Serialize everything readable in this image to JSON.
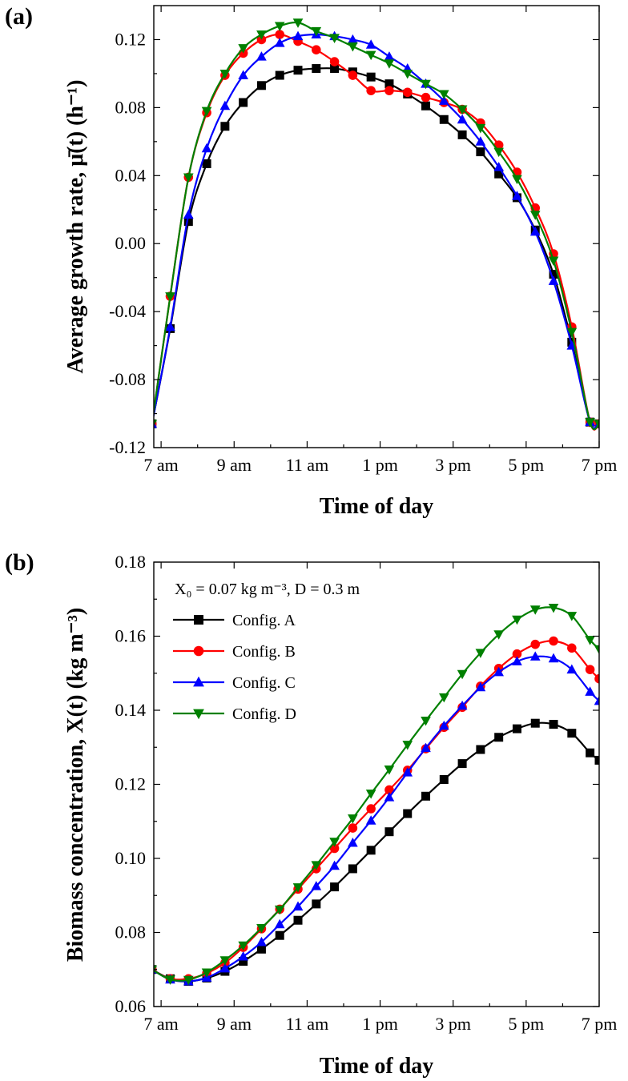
{
  "chart_data": [
    {
      "type": "line",
      "panel_label": "(a)",
      "xlabel": "Time of day",
      "ylabel": "Average growth rate, μ̄(t) (h⁻¹)",
      "xlim": [
        6.8,
        19.0
      ],
      "ylim": [
        -0.12,
        0.14
      ],
      "xticks": [
        7,
        9,
        11,
        13,
        15,
        17,
        19
      ],
      "xtick_labels": [
        "7 am",
        "9 am",
        "11 am",
        "1 pm",
        "3 pm",
        "5 pm",
        "7 pm"
      ],
      "yticks": [
        -0.12,
        -0.08,
        -0.04,
        0.0,
        0.04,
        0.08,
        0.12
      ],
      "ytick_labels": [
        "-0.12",
        "-0.08",
        "-0.04",
        "0.00",
        "0.04",
        "0.08",
        "0.12"
      ],
      "x": [
        6.75,
        7.25,
        7.75,
        8.25,
        8.75,
        9.25,
        9.75,
        10.25,
        10.75,
        11.25,
        11.75,
        12.25,
        12.75,
        13.25,
        13.75,
        14.25,
        14.75,
        15.25,
        15.75,
        16.25,
        16.75,
        17.25,
        17.75,
        18.25,
        18.75,
        19.0
      ],
      "series": [
        {
          "name": "Config. A",
          "color": "#000000",
          "marker": "square",
          "values": [
            -0.106,
            -0.05,
            0.013,
            0.047,
            0.069,
            0.083,
            0.093,
            0.099,
            0.102,
            0.103,
            0.103,
            0.101,
            0.098,
            0.094,
            0.088,
            0.081,
            0.073,
            0.064,
            0.054,
            0.041,
            0.027,
            0.008,
            -0.018,
            -0.058,
            -0.105,
            -0.106
          ]
        },
        {
          "name": "Config. B",
          "color": "#ff0000",
          "marker": "circle",
          "values": [
            -0.106,
            -0.031,
            0.039,
            0.077,
            0.099,
            0.112,
            0.12,
            0.123,
            0.119,
            0.114,
            0.107,
            0.099,
            0.09,
            0.09,
            0.089,
            0.086,
            0.083,
            0.079,
            0.071,
            0.058,
            0.042,
            0.021,
            -0.006,
            -0.049,
            -0.105,
            -0.106
          ]
        },
        {
          "name": "Config. C",
          "color": "#0000ff",
          "marker": "triangle-up",
          "values": [
            -0.106,
            -0.049,
            0.017,
            0.056,
            0.081,
            0.099,
            0.11,
            0.118,
            0.122,
            0.123,
            0.122,
            0.12,
            0.117,
            0.11,
            0.103,
            0.094,
            0.084,
            0.073,
            0.06,
            0.045,
            0.028,
            0.007,
            -0.022,
            -0.06,
            -0.105,
            -0.106
          ]
        },
        {
          "name": "Config. D",
          "color": "#008000",
          "marker": "triangle-down",
          "values": [
            -0.106,
            -0.031,
            0.039,
            0.078,
            0.1,
            0.115,
            0.123,
            0.128,
            0.13,
            0.125,
            0.121,
            0.116,
            0.111,
            0.106,
            0.1,
            0.094,
            0.088,
            0.079,
            0.068,
            0.054,
            0.038,
            0.017,
            -0.01,
            -0.052,
            -0.105,
            -0.106
          ]
        }
      ]
    },
    {
      "type": "line",
      "panel_label": "(b)",
      "xlabel": "Time of day",
      "ylabel": "Biomass concentration, X(t) (kg m⁻³)",
      "annotation": "X₀ = 0.07 kg m⁻³, D = 0.3 m",
      "legend_position": "top-left",
      "xlim": [
        6.8,
        19.0
      ],
      "ylim": [
        0.06,
        0.18
      ],
      "xticks": [
        7,
        9,
        11,
        13,
        15,
        17,
        19
      ],
      "xtick_labels": [
        "7 am",
        "9 am",
        "11 am",
        "1 pm",
        "3 pm",
        "5 pm",
        "7 pm"
      ],
      "yticks": [
        0.06,
        0.08,
        0.1,
        0.12,
        0.14,
        0.16,
        0.18
      ],
      "ytick_labels": [
        "0.06",
        "0.08",
        "0.10",
        "0.12",
        "0.14",
        "0.16",
        "0.18"
      ],
      "x": [
        6.75,
        7.25,
        7.75,
        8.25,
        8.75,
        9.25,
        9.75,
        10.25,
        10.75,
        11.25,
        11.75,
        12.25,
        12.75,
        13.25,
        13.75,
        14.25,
        14.75,
        15.25,
        15.75,
        16.25,
        16.75,
        17.25,
        17.75,
        18.25,
        18.75,
        19.0
      ],
      "series": [
        {
          "name": "Config. A",
          "color": "#000000",
          "marker": "square",
          "values": [
            0.07,
            0.0675,
            0.0668,
            0.0677,
            0.0695,
            0.0722,
            0.0755,
            0.0792,
            0.0833,
            0.0877,
            0.0923,
            0.0972,
            0.1022,
            0.1072,
            0.1121,
            0.1168,
            0.1213,
            0.1256,
            0.1294,
            0.1327,
            0.135,
            0.1365,
            0.1362,
            0.1338,
            0.1285,
            0.1265
          ]
        },
        {
          "name": "Config. B",
          "color": "#ff0000",
          "marker": "circle",
          "values": [
            0.07,
            0.0675,
            0.0675,
            0.069,
            0.0718,
            0.076,
            0.081,
            0.0863,
            0.0917,
            0.0972,
            0.1027,
            0.1082,
            0.1134,
            0.1185,
            0.1238,
            0.1296,
            0.1354,
            0.1408,
            0.1465,
            0.1513,
            0.1552,
            0.1578,
            0.1587,
            0.1568,
            0.151,
            0.1485
          ]
        },
        {
          "name": "Config. C",
          "color": "#0000ff",
          "marker": "triangle-up",
          "values": [
            0.07,
            0.0673,
            0.0668,
            0.0678,
            0.0703,
            0.0735,
            0.0774,
            0.0822,
            0.087,
            0.0925,
            0.098,
            0.1042,
            0.1102,
            0.1165,
            0.1232,
            0.1298,
            0.1358,
            0.1412,
            0.1462,
            0.1503,
            0.1532,
            0.1545,
            0.154,
            0.151,
            0.145,
            0.1425
          ]
        },
        {
          "name": "Config. D",
          "color": "#008000",
          "marker": "triangle-down",
          "values": [
            0.07,
            0.0673,
            0.0672,
            0.0692,
            0.0725,
            0.0765,
            0.0812,
            0.0862,
            0.0922,
            0.0982,
            0.1045,
            0.1108,
            0.1175,
            0.124,
            0.1307,
            0.1372,
            0.1435,
            0.1498,
            0.1555,
            0.1605,
            0.1645,
            0.1672,
            0.1677,
            0.1655,
            0.159,
            0.1565
          ]
        }
      ]
    }
  ]
}
